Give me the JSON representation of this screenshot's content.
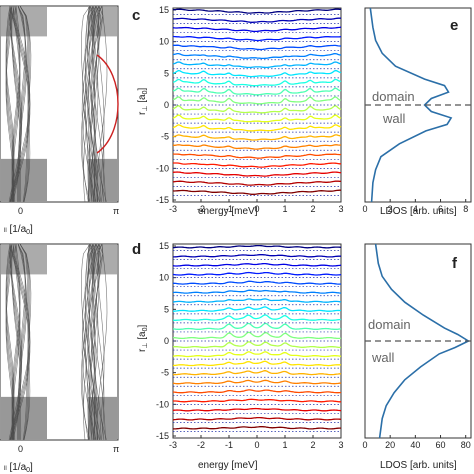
{
  "panel_letters": {
    "c": "c",
    "d": "d",
    "e": "e",
    "f": "f"
  },
  "left_panels": {
    "xticks": [
      "0",
      "π"
    ],
    "xlabel_top": "[1/a",
    "xlabel_sub": "0",
    "xlabel_close": "]",
    "klabel_fragment": "ll",
    "curve_colors": {
      "bands": "#555555",
      "edge": "#cc2222"
    }
  },
  "axes": {
    "energy_label": "energy [meV]",
    "energy_ticks": [
      "-3",
      "-2",
      "-1",
      "0",
      "1",
      "2",
      "3"
    ],
    "r_label": "r",
    "r_sub": "⊥",
    "r_unit": "[a",
    "r_unit_sub": "0",
    "r_unit_close": "]",
    "r_ticks": [
      "15",
      "10",
      "5",
      "0",
      "-5",
      "-10",
      "-15"
    ],
    "ldos_label": "LDOS [arb. units]",
    "ldos_ticks_top": [
      "0",
      "2",
      "4",
      "6",
      "8"
    ],
    "ldos_ticks_bottom": [
      "0",
      "20",
      "40",
      "60",
      "80"
    ]
  },
  "annotation": {
    "line1": "domain",
    "line2": "wall"
  },
  "colors": {
    "ldos_line": "#2b6fa8",
    "dashed": "#555555",
    "dotted_baseline": "#2233aa"
  },
  "chart_data": [
    {
      "type": "line",
      "panel": "c",
      "xlabel": "energy [meV]",
      "ylabel": "r⊥ [a0]",
      "xlim": [
        -3,
        3
      ],
      "ylim": [
        -15,
        15
      ],
      "series_count": 21,
      "description_values": {
        "r_offsets": [
          -14,
          -12.6,
          -11.2,
          -9.8,
          -8.4,
          -7,
          -5.6,
          -4.2,
          -2.8,
          -1.4,
          0,
          1.4,
          2.8,
          4.2,
          5.6,
          7,
          8.4,
          9.8,
          11.2,
          12.6,
          14
        ],
        "peak_energies_meV": [
          -2.8,
          -1.9,
          -1.0,
          1.0,
          1.9,
          2.8
        ]
      }
    },
    {
      "type": "line",
      "panel": "d",
      "xlabel": "energy [meV]",
      "ylabel": "r⊥ [a0]",
      "xlim": [
        -3,
        3
      ],
      "ylim": [
        -15,
        15
      ],
      "series_count": 21,
      "description_values": {
        "r_offsets": [
          -14,
          -12.6,
          -11.2,
          -9.8,
          -8.4,
          -7,
          -5.6,
          -4.2,
          -2.8,
          -1.4,
          0,
          1.4,
          2.8,
          4.2,
          5.6,
          7,
          8.4,
          9.8,
          11.2,
          12.6,
          14
        ],
        "peak_energies_meV": [
          -1.0,
          -0.3,
          0.3,
          1.0
        ]
      }
    },
    {
      "type": "line",
      "panel": "e",
      "xlabel": "LDOS [arb. units]",
      "ylim": [
        -15,
        15
      ],
      "xlim": [
        0,
        8
      ],
      "r": [
        -15,
        -12,
        -10,
        -8,
        -6,
        -4,
        -3,
        -2,
        -1,
        0,
        1,
        2,
        3,
        4,
        6,
        8,
        10,
        12,
        15
      ],
      "ldos": [
        0.5,
        0.6,
        0.8,
        1.2,
        2.6,
        4.6,
        6.2,
        6.5,
        5.0,
        4.5,
        5.0,
        6.3,
        6.0,
        4.5,
        2.3,
        1.3,
        0.8,
        0.6,
        0.4
      ]
    },
    {
      "type": "line",
      "panel": "f",
      "xlabel": "LDOS [arb. units]",
      "ylim": [
        -15,
        15
      ],
      "xlim": [
        0,
        80
      ],
      "r": [
        -15,
        -12,
        -10,
        -8,
        -6,
        -4,
        -2,
        -1,
        0,
        1,
        2,
        4,
        6,
        8,
        10,
        12,
        15
      ],
      "ldos": [
        11,
        13,
        16,
        22,
        30,
        42,
        56,
        68,
        78,
        70,
        60,
        44,
        30,
        20,
        13,
        10,
        8
      ]
    }
  ]
}
